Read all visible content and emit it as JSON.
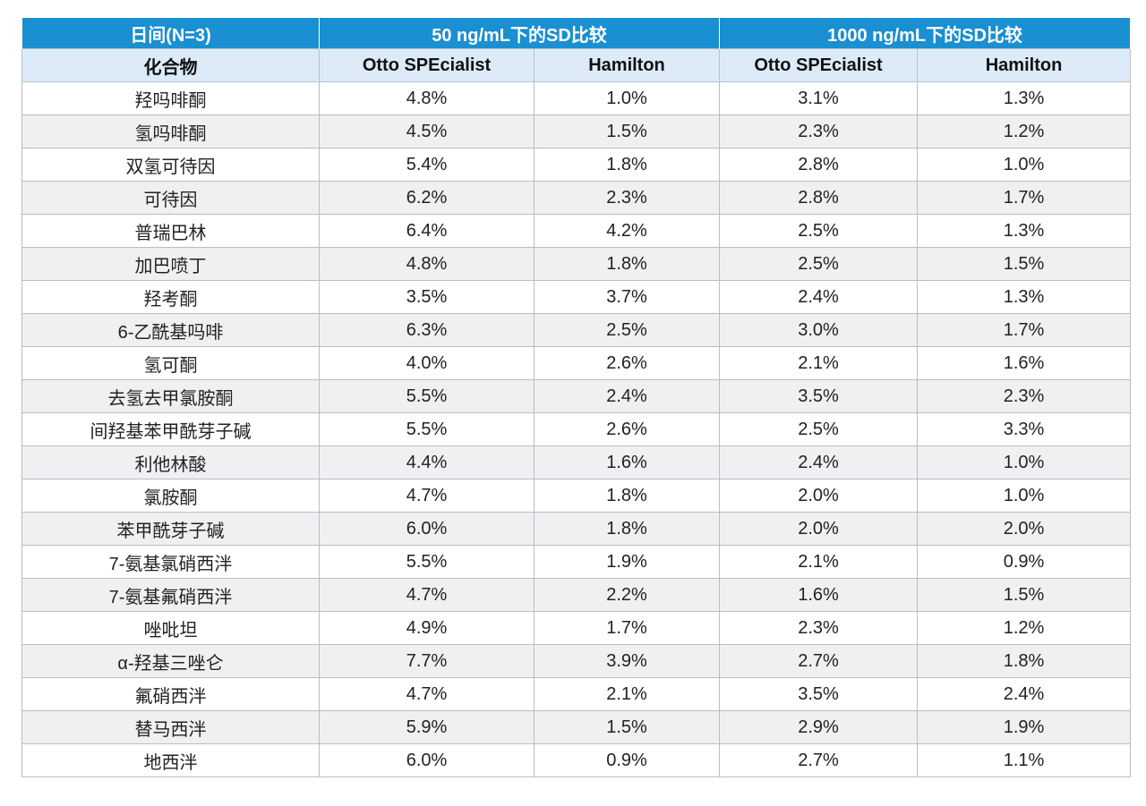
{
  "table": {
    "group_headers": [
      "日间(N=3)",
      "50 ng/mL下的SD比较",
      "1000 ng/mL下的SD比较"
    ],
    "columns": [
      "化合物",
      "Otto SPEcialist",
      "Hamilton",
      "Otto SPEcialist",
      "Hamilton"
    ],
    "rows": [
      [
        "羟吗啡酮",
        "4.8%",
        "1.0%",
        "3.1%",
        "1.3%"
      ],
      [
        "氢吗啡酮",
        "4.5%",
        "1.5%",
        "2.3%",
        "1.2%"
      ],
      [
        "双氢可待因",
        "5.4%",
        "1.8%",
        "2.8%",
        "1.0%"
      ],
      [
        "可待因",
        "6.2%",
        "2.3%",
        "2.8%",
        "1.7%"
      ],
      [
        "普瑞巴林",
        "6.4%",
        "4.2%",
        "2.5%",
        "1.3%"
      ],
      [
        "加巴喷丁",
        "4.8%",
        "1.8%",
        "2.5%",
        "1.5%"
      ],
      [
        "羟考酮",
        "3.5%",
        "3.7%",
        "2.4%",
        "1.3%"
      ],
      [
        "6-乙酰基吗啡",
        "6.3%",
        "2.5%",
        "3.0%",
        "1.7%"
      ],
      [
        "氢可酮",
        "4.0%",
        "2.6%",
        "2.1%",
        "1.6%"
      ],
      [
        "去氢去甲氯胺酮",
        "5.5%",
        "2.4%",
        "3.5%",
        "2.3%"
      ],
      [
        "间羟基苯甲酰芽子碱",
        "5.5%",
        "2.6%",
        "2.5%",
        "3.3%"
      ],
      [
        "利他林酸",
        "4.4%",
        "1.6%",
        "2.4%",
        "1.0%"
      ],
      [
        "氯胺酮",
        "4.7%",
        "1.8%",
        "2.0%",
        "1.0%"
      ],
      [
        "苯甲酰芽子碱",
        "6.0%",
        "1.8%",
        "2.0%",
        "2.0%"
      ],
      [
        "7-氨基氯硝西泮",
        "5.5%",
        "1.9%",
        "2.1%",
        "0.9%"
      ],
      [
        "7-氨基氟硝西泮",
        "4.7%",
        "2.2%",
        "1.6%",
        "1.5%"
      ],
      [
        "唑吡坦",
        "4.9%",
        "1.7%",
        "2.3%",
        "1.2%"
      ],
      [
        "α-羟基三唑仑",
        "7.7%",
        "3.9%",
        "2.7%",
        "1.8%"
      ],
      [
        "氟硝西泮",
        "4.7%",
        "2.1%",
        "3.5%",
        "2.4%"
      ],
      [
        "替马西泮",
        "5.9%",
        "1.5%",
        "2.9%",
        "1.9%"
      ],
      [
        "地西泮",
        "6.0%",
        "0.9%",
        "2.7%",
        "1.1%"
      ]
    ]
  }
}
